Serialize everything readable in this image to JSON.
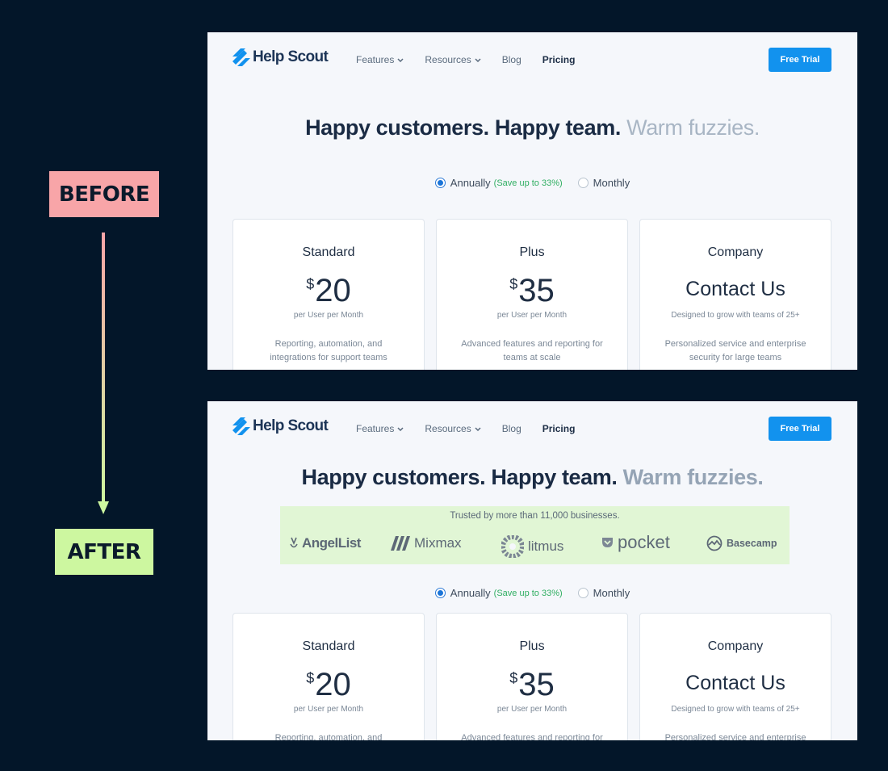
{
  "labels": {
    "before": "BEFORE",
    "after": "AFTER"
  },
  "nav": {
    "brand": "Help Scout",
    "links": [
      {
        "label": "Features",
        "dropdown": true
      },
      {
        "label": "Resources",
        "dropdown": true
      },
      {
        "label": "Blog",
        "dropdown": false
      },
      {
        "label": "Pricing",
        "dropdown": false,
        "active": true
      }
    ],
    "cta": "Free Trial"
  },
  "headline": {
    "main": "Happy customers. Happy team.",
    "soft": "Warm fuzzies."
  },
  "billing": {
    "annual": "Annually",
    "annual_note": "(Save up to 33%)",
    "monthly": "Monthly"
  },
  "plans": [
    {
      "name": "Standard",
      "currency": "$",
      "price": "20",
      "per": "per User per Month",
      "desc": "Reporting, automation, and integrations for support teams"
    },
    {
      "name": "Plus",
      "currency": "$",
      "price": "35",
      "per": "per User per Month",
      "desc": "Advanced features and reporting for teams at scale"
    },
    {
      "name": "Company",
      "price": "Contact Us",
      "per": "Designed to grow with teams of 25+",
      "desc": "Personalized service and enterprise security for large teams"
    }
  ],
  "trusted": {
    "text": "Trusted by more than 11,000 businesses.",
    "brands": [
      "AngelList",
      "Mixmax",
      "litmus",
      "pocket",
      "Basecamp"
    ]
  },
  "colors": {
    "background": "#031629",
    "before_tag": "#f8a5a8",
    "after_tag": "#cdf7a0",
    "cta": "#1292ee",
    "save_note": "#2fae61",
    "trusted_band": "#e1f6d5"
  }
}
